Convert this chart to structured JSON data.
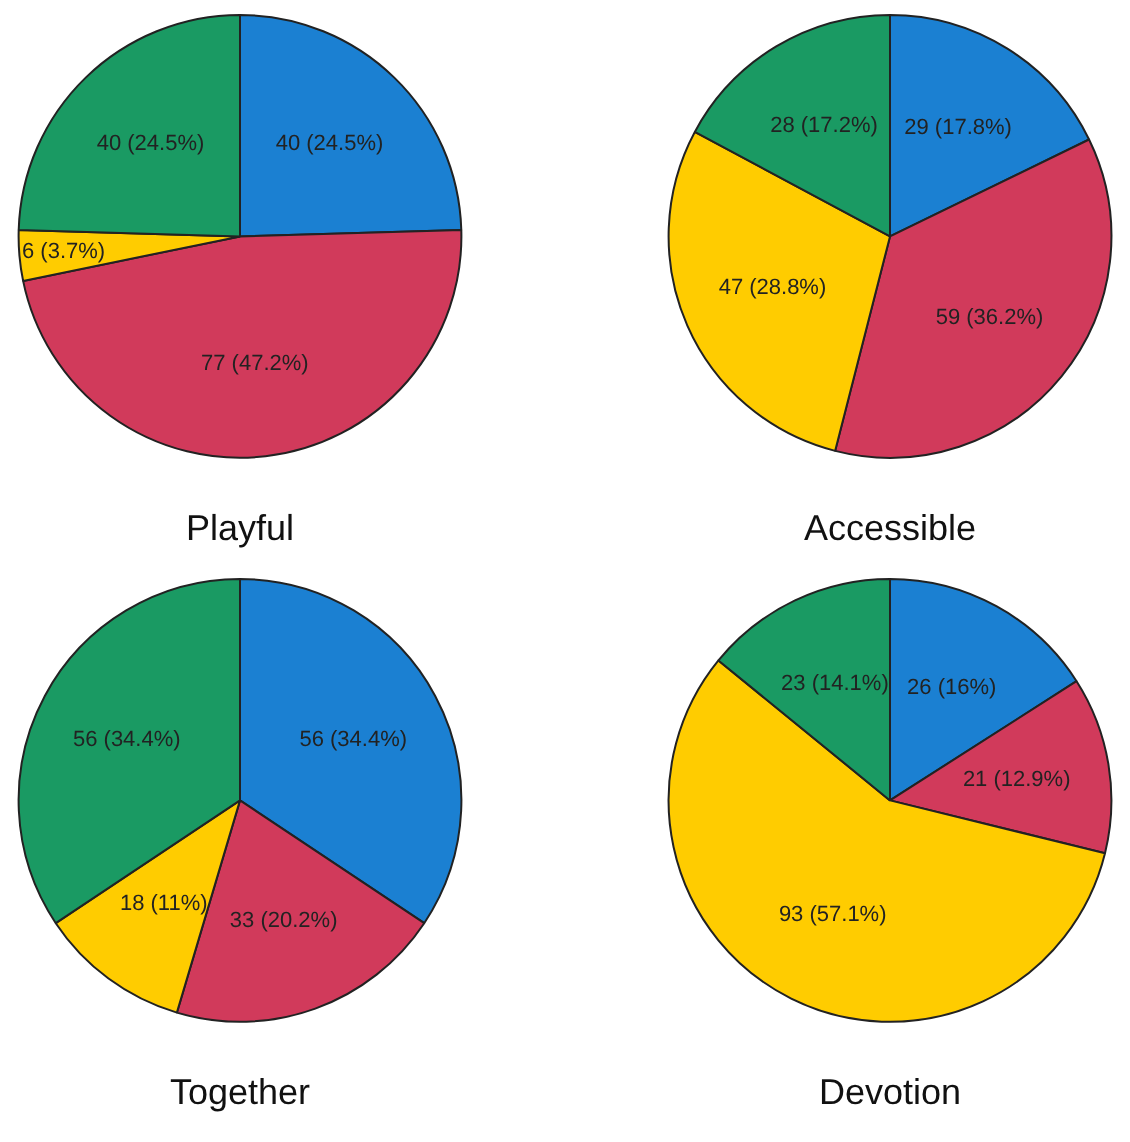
{
  "chart_data": [
    {
      "type": "pie",
      "title": "Playful",
      "categories": [
        null,
        null,
        null,
        null
      ],
      "values": [
        40,
        77,
        6,
        40
      ],
      "colors": [
        "#1b80d2",
        "#d13a5b",
        "#ffcc00",
        "#1a9a63"
      ],
      "value_labels": [
        "40 (24.5%)",
        "77 (47.2%)",
        "6 (3.7%)",
        "40 (24.5%)"
      ]
    },
    {
      "type": "pie",
      "title": "Accessible",
      "categories": [
        null,
        null,
        null,
        null
      ],
      "values": [
        29,
        59,
        47,
        28
      ],
      "colors": [
        "#1b80d2",
        "#d13a5b",
        "#ffcc00",
        "#1a9a63"
      ],
      "value_labels": [
        "29 (17.8%)",
        "59 (36.2%)",
        "47 (28.8%)",
        "28 (17.2%)"
      ]
    },
    {
      "type": "pie",
      "title": "Together",
      "categories": [
        null,
        null,
        null,
        null
      ],
      "values": [
        56,
        33,
        18,
        56
      ],
      "colors": [
        "#1b80d2",
        "#d13a5b",
        "#ffcc00",
        "#1a9a63"
      ],
      "value_labels": [
        "56 (34.4%)",
        "33 (20.2%)",
        "18 (11%)",
        "56 (34.4%)"
      ]
    },
    {
      "type": "pie",
      "title": "Devotion",
      "categories": [
        null,
        null,
        null,
        null
      ],
      "values": [
        26,
        21,
        93,
        23
      ],
      "colors": [
        "#1b80d2",
        "#d13a5b",
        "#ffcc00",
        "#1a9a63"
      ],
      "value_labels": [
        "26 (16%)",
        "21 (12.9%)",
        "93 (57.1%)",
        "23 (14.1%)"
      ]
    }
  ]
}
